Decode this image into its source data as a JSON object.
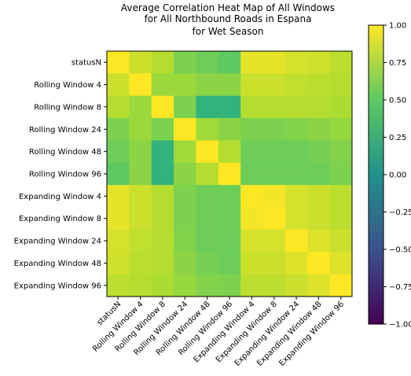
{
  "chart_data": {
    "type": "heatmap",
    "title_lines": [
      "Average Correlation Heat Map of All Windows",
      "for All Northbound Roads in Espana",
      "for Wet Season"
    ],
    "row_labels": [
      "statusN",
      "Rolling Window 4",
      "Rolling Window 8",
      "Rolling Window 24",
      "Rolling Window 48",
      "Rolling Window 96",
      "Expanding Window 4",
      "Expanding Window 8",
      "Expanding Window 24",
      "Expanding Window 48",
      "Expanding Window 96"
    ],
    "col_labels": [
      "statusN",
      "Rolling Window 4",
      "Rolling Window 8",
      "Rolling Window 24",
      "Rolling Window 48",
      "Rolling Window 96",
      "Expanding Window 4",
      "Expanding Window 8",
      "Expanding Window 24",
      "Expanding Window 48",
      "Expanding Window 96"
    ],
    "values": [
      [
        1.0,
        0.85,
        0.78,
        0.6,
        0.55,
        0.5,
        0.93,
        0.93,
        0.88,
        0.86,
        0.8
      ],
      [
        0.85,
        1.0,
        0.7,
        0.7,
        0.65,
        0.65,
        0.85,
        0.85,
        0.82,
        0.8,
        0.78
      ],
      [
        0.78,
        0.7,
        1.0,
        0.6,
        0.3,
        0.3,
        0.78,
        0.78,
        0.78,
        0.78,
        0.75
      ],
      [
        0.6,
        0.7,
        0.6,
        1.0,
        0.72,
        0.65,
        0.6,
        0.6,
        0.62,
        0.65,
        0.68
      ],
      [
        0.55,
        0.65,
        0.3,
        0.72,
        1.0,
        0.78,
        0.55,
        0.55,
        0.55,
        0.58,
        0.62
      ],
      [
        0.5,
        0.65,
        0.3,
        0.65,
        0.78,
        1.0,
        0.55,
        0.55,
        0.55,
        0.55,
        0.6
      ],
      [
        0.93,
        0.85,
        0.78,
        0.6,
        0.55,
        0.55,
        1.0,
        0.97,
        0.88,
        0.85,
        0.8
      ],
      [
        0.93,
        0.85,
        0.78,
        0.6,
        0.55,
        0.55,
        0.97,
        1.0,
        0.88,
        0.85,
        0.8
      ],
      [
        0.88,
        0.82,
        0.78,
        0.62,
        0.55,
        0.55,
        0.88,
        0.88,
        1.0,
        0.9,
        0.85
      ],
      [
        0.86,
        0.8,
        0.78,
        0.65,
        0.58,
        0.55,
        0.85,
        0.85,
        0.9,
        1.0,
        0.9
      ],
      [
        0.8,
        0.78,
        0.75,
        0.68,
        0.62,
        0.6,
        0.8,
        0.8,
        0.85,
        0.9,
        1.0
      ]
    ],
    "vmin": -1.0,
    "vmax": 1.0,
    "colormap": "viridis",
    "colorbar_ticks": [
      "1.00",
      "0.75",
      "0.50",
      "0.25",
      "0.00",
      "−0.25",
      "−0.50",
      "−0.75",
      "−1.00"
    ]
  }
}
